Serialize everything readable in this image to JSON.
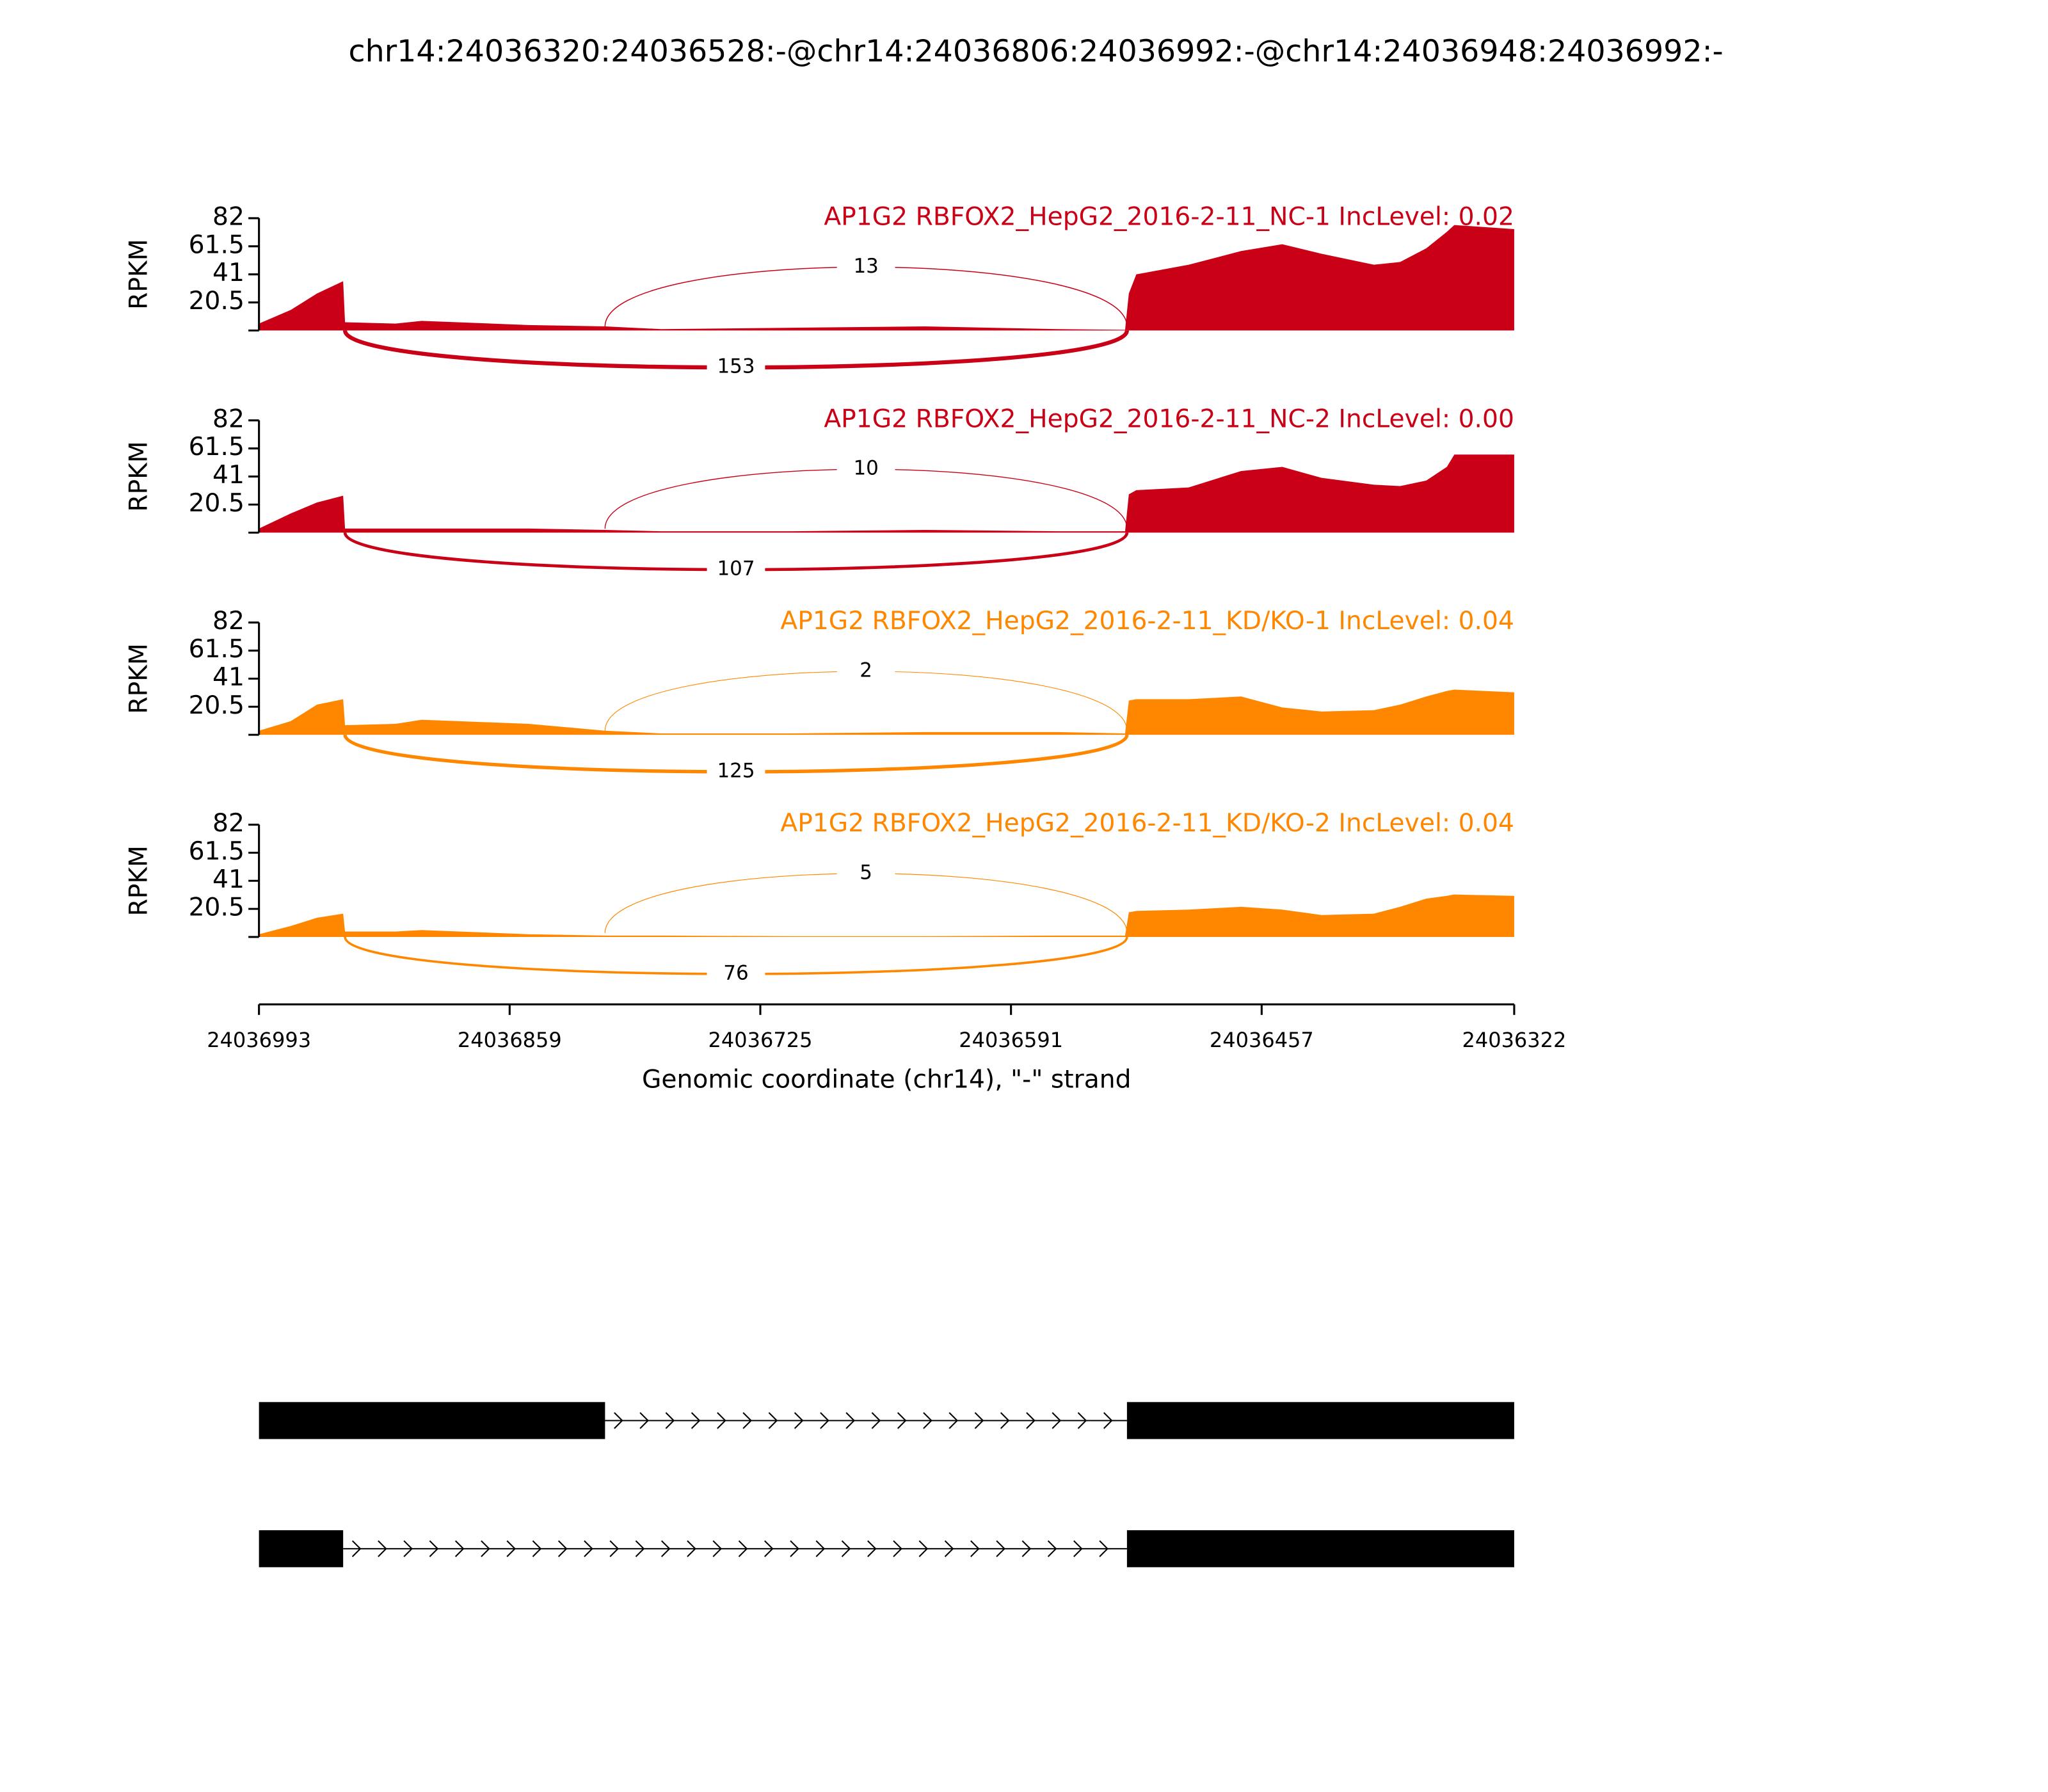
{
  "chart_data": {
    "type": "sashimi",
    "title": "chr14:24036320:24036528:-@chr14:24036806:24036992:-@chr14:24036948:24036992:-",
    "xlabel": "Genomic coordinate (chr14), \"-\" strand",
    "xlim": [
      24036993,
      24036322
    ],
    "xticks": [
      24036993,
      24036859,
      24036725,
      24036591,
      24036457,
      24036322
    ],
    "x": [
      24036993,
      24036976,
      24036962,
      24036948,
      24036947,
      24036920,
      24036906,
      24036849,
      24036808,
      24036778,
      24036708,
      24036637,
      24036566,
      24036530,
      24036528,
      24036524,
      24036496,
      24036468,
      24036446,
      24036425,
      24036397,
      24036383,
      24036369,
      24036358,
      24036354,
      24036322
    ],
    "panels": [
      {
        "title": "AP1G2 RBFOX2_HepG2_2016-2-11_NC-1 IncLevel: 0.02",
        "color": "#c90016",
        "ylabel": "RPKM",
        "ylim": [
          0,
          82
        ],
        "yticks": [
          20.5,
          41,
          61.5,
          82
        ],
        "values": [
          5,
          15,
          27,
          36,
          6,
          5,
          7,
          4,
          3,
          1,
          2,
          3,
          1,
          0.5,
          27,
          41,
          48,
          58,
          63,
          56,
          48,
          50,
          60,
          72,
          77,
          74
        ],
        "junctions": [
          {
            "start": 24036808,
            "end": 24036529,
            "count": 13
          },
          {
            "start": 24036947,
            "end": 24036529,
            "count": 153
          }
        ]
      },
      {
        "title": "AP1G2 RBFOX2_HepG2_2016-2-11_NC-2 IncLevel: 0.00",
        "color": "#c90016",
        "ylabel": "RPKM",
        "ylim": [
          0,
          82
        ],
        "yticks": [
          20.5,
          41,
          61.5,
          82
        ],
        "values": [
          3,
          14,
          22,
          27,
          3,
          3,
          3,
          3,
          2,
          1,
          1,
          2,
          1,
          1,
          28,
          31,
          33,
          45,
          48,
          40,
          35,
          34,
          38,
          48,
          57,
          57
        ],
        "junctions": [
          {
            "start": 24036808,
            "end": 24036529,
            "count": 10
          },
          {
            "start": 24036947,
            "end": 24036529,
            "count": 107
          }
        ]
      },
      {
        "title": "AP1G2 RBFOX2_HepG2_2016-2-11_KD/KO-1 IncLevel: 0.04",
        "color": "#ff8700",
        "ylabel": "RPKM",
        "ylim": [
          0,
          82
        ],
        "yticks": [
          20.5,
          41,
          61.5,
          82
        ],
        "values": [
          3,
          10,
          22,
          26,
          7,
          8,
          11,
          8,
          3,
          1,
          1,
          2,
          2,
          1,
          25,
          26,
          26,
          28,
          20,
          17,
          18,
          22,
          28,
          32,
          33,
          31
        ],
        "junctions": [
          {
            "start": 24036808,
            "end": 24036529,
            "count": 2
          },
          {
            "start": 24036947,
            "end": 24036529,
            "count": 125
          }
        ]
      },
      {
        "title": "AP1G2 RBFOX2_HepG2_2016-2-11_KD/KO-2 IncLevel: 0.04",
        "color": "#ff8700",
        "ylabel": "RPKM",
        "ylim": [
          0,
          82
        ],
        "yticks": [
          20.5,
          41,
          61.5,
          82
        ],
        "values": [
          2,
          8,
          14,
          17,
          4,
          4,
          5,
          2,
          1,
          1,
          0.5,
          0.5,
          1,
          1,
          18,
          19,
          20,
          22,
          20,
          16,
          17,
          22,
          28,
          30,
          31,
          30
        ],
        "junctions": [
          {
            "start": 24036808,
            "end": 24036529,
            "count": 5
          },
          {
            "start": 24036947,
            "end": 24036529,
            "count": 76
          }
        ]
      }
    ],
    "transcripts": [
      {
        "exons": [
          [
            24036993,
            24036808
          ],
          [
            24036529,
            24036322
          ]
        ]
      },
      {
        "exons": [
          [
            24036993,
            24036948
          ],
          [
            24036529,
            24036322
          ]
        ]
      }
    ]
  }
}
